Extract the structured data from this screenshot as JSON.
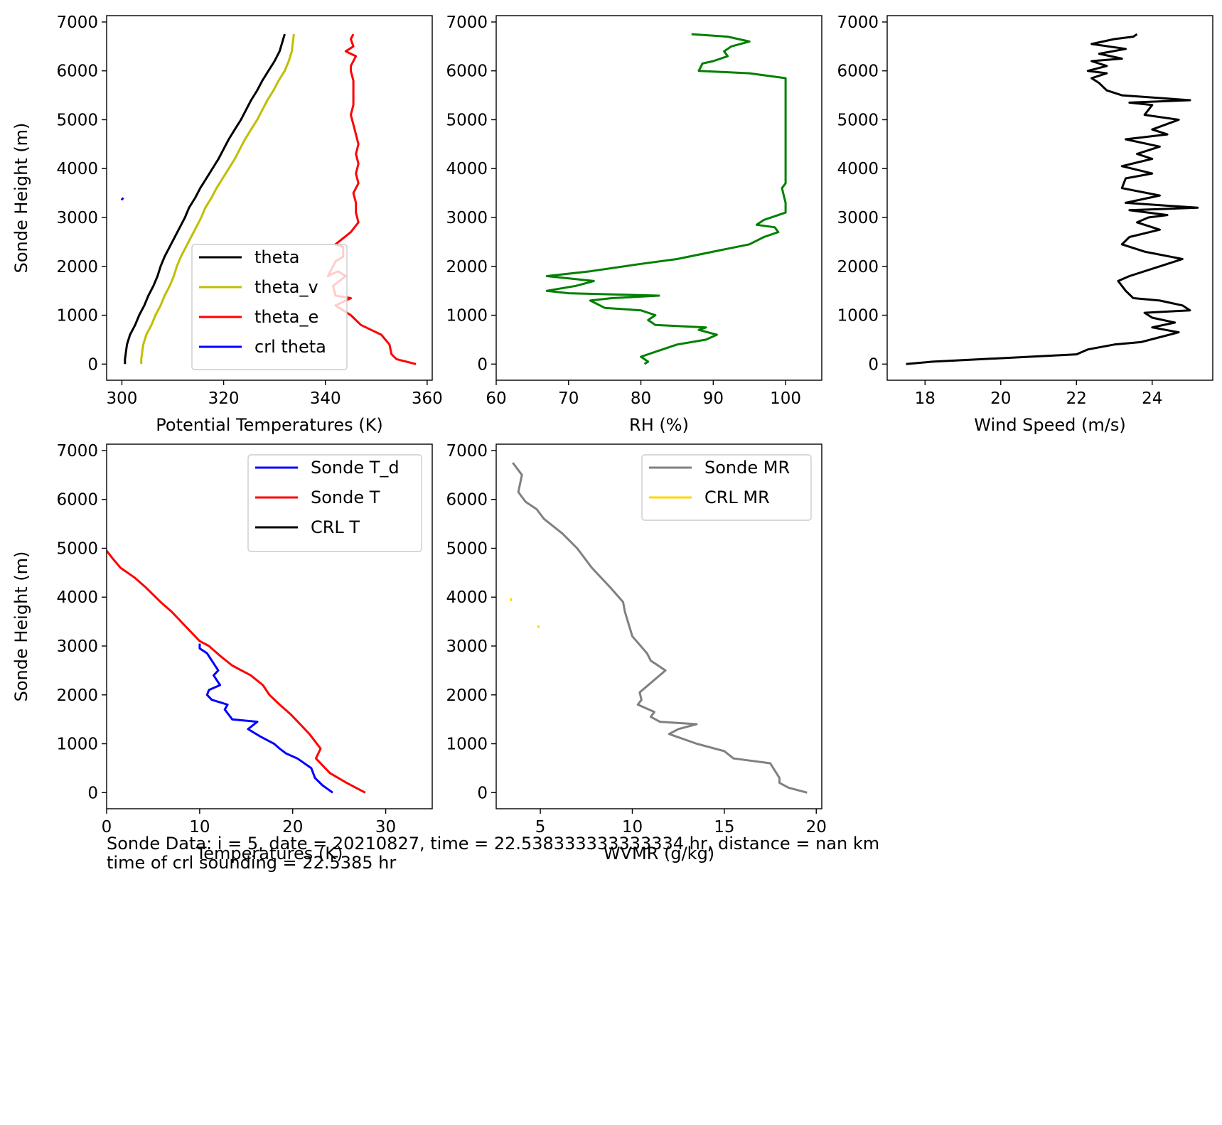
{
  "caption": {
    "line1": "Sonde Data: i = 5, date = 20210827, time = 22.538333333333334 hr, distance = nan km",
    "line2": "time of crl sounding = 22.5385 hr"
  },
  "chart_data": [
    {
      "id": "theta",
      "type": "line",
      "xlabel": "Potential Temperatures (K)",
      "ylabel": "Sonde Height (m)",
      "xlim": [
        297,
        361
      ],
      "ylim": [
        -330,
        7130
      ],
      "xticks": [
        300,
        320,
        340,
        360
      ],
      "yticks": [
        0,
        1000,
        2000,
        3000,
        4000,
        5000,
        6000,
        7000
      ],
      "legend": "lower-right",
      "series": [
        {
          "name": "theta",
          "color": "#000000",
          "x": [
            300.6,
            300.6,
            300.8,
            301.0,
            301.6,
            302.6,
            303.4,
            304.4,
            305.2,
            306.2,
            307.0,
            307.6,
            308.4,
            309.4,
            310.4,
            311.4,
            312.4,
            313.2,
            314.4,
            315.4,
            316.6,
            317.8,
            319.0,
            320.0,
            321.0,
            322.2,
            323.4,
            324.4,
            325.4,
            326.6,
            327.6,
            328.8,
            330.0,
            331.0,
            332.0
          ],
          "y": [
            0,
            100,
            250,
            400,
            600,
            800,
            1000,
            1200,
            1400,
            1600,
            1800,
            2000,
            2200,
            2400,
            2600,
            2800,
            3000,
            3200,
            3400,
            3600,
            3800,
            4000,
            4200,
            4400,
            4600,
            4800,
            5000,
            5200,
            5400,
            5600,
            5800,
            6000,
            6200,
            6400,
            6750
          ]
        },
        {
          "name": "theta_v",
          "color": "#bfbf00",
          "x": [
            303.8,
            303.8,
            304.0,
            304.2,
            304.8,
            305.8,
            306.6,
            307.6,
            308.4,
            309.4,
            310.2,
            310.8,
            311.6,
            312.6,
            313.6,
            314.6,
            315.6,
            316.4,
            317.6,
            318.6,
            319.8,
            321.0,
            322.2,
            323.2,
            324.2,
            325.4,
            326.6,
            327.6,
            328.6,
            329.8,
            330.8,
            332.0,
            332.8,
            333.4,
            333.8
          ],
          "y": [
            0,
            100,
            250,
            400,
            600,
            800,
            1000,
            1200,
            1400,
            1600,
            1800,
            2000,
            2200,
            2400,
            2600,
            2800,
            3000,
            3200,
            3400,
            3600,
            3800,
            4000,
            4200,
            4400,
            4600,
            4800,
            5000,
            5200,
            5400,
            5600,
            5800,
            6000,
            6200,
            6400,
            6750
          ]
        },
        {
          "name": "theta_e",
          "color": "#ff0000",
          "x": [
            357.8,
            354.0,
            353.0,
            352.6,
            351.0,
            349.0,
            347.0,
            345.0,
            343.5,
            342.0,
            345.0,
            342.0,
            341.5,
            344.0,
            342.5,
            340.5,
            342.0,
            343.5,
            343.5,
            342.0,
            345.0,
            346.5,
            346.0,
            346.0,
            345.5,
            346.5,
            346.0,
            346.5,
            346.0,
            346.5,
            346.0,
            345.5,
            345.0,
            345.5,
            345.5,
            345.5,
            345.0,
            345.0,
            346.0,
            344.0,
            345.5,
            345.0,
            345.5
          ],
          "y": [
            0,
            100,
            200,
            400,
            600,
            700,
            800,
            1000,
            1100,
            1200,
            1350,
            1400,
            1600,
            1800,
            1900,
            1800,
            2100,
            2200,
            2400,
            2450,
            2700,
            2900,
            3100,
            3300,
            3500,
            3700,
            3900,
            4100,
            4300,
            4500,
            4700,
            4900,
            5100,
            5300,
            5600,
            5800,
            6000,
            6100,
            6300,
            6400,
            6500,
            6650,
            6750
          ]
        },
        {
          "name": "crl theta",
          "color": "#0000ff",
          "x": [
            299.9,
            300.3
          ],
          "y": [
            3360,
            3400
          ]
        }
      ]
    },
    {
      "id": "rh",
      "type": "line",
      "xlabel": "RH (%)",
      "ylabel": "",
      "xlim": [
        60,
        105
      ],
      "ylim": [
        -330,
        7130
      ],
      "xticks": [
        60,
        70,
        80,
        90,
        100
      ],
      "yticks": [
        0,
        1000,
        2000,
        3000,
        4000,
        5000,
        6000,
        7000
      ],
      "series": [
        {
          "name": "",
          "color": "#008000",
          "x": [
            80.5,
            81.0,
            80.0,
            82.0,
            85.0,
            89.0,
            90.5,
            88.0,
            89.0,
            82.0,
            81.0,
            82.0,
            80.0,
            75.0,
            73.0,
            76.0,
            82.5,
            70.0,
            67.0,
            71.0,
            73.5,
            67.0,
            73.0,
            80.0,
            85.0,
            90.0,
            95.0,
            97.0,
            99.0,
            98.5,
            96.0,
            97.0,
            99.0,
            100.0,
            100.0,
            99.5,
            100.0,
            100.0,
            100.0,
            100.0,
            95.0,
            88.0,
            88.5,
            90.0,
            92.0,
            91.5,
            92.5,
            95.0,
            92.0,
            87.0
          ],
          "y": [
            0,
            50,
            150,
            250,
            400,
            500,
            600,
            700,
            750,
            800,
            900,
            1000,
            1100,
            1150,
            1300,
            1350,
            1400,
            1450,
            1500,
            1600,
            1700,
            1800,
            1900,
            2050,
            2150,
            2300,
            2450,
            2600,
            2700,
            2800,
            2850,
            2950,
            3050,
            3100,
            3300,
            3600,
            3700,
            3800,
            5000,
            5850,
            5950,
            6000,
            6150,
            6200,
            6300,
            6400,
            6500,
            6600,
            6700,
            6750
          ]
        }
      ]
    },
    {
      "id": "wind",
      "type": "line",
      "xlabel": "Wind Speed (m/s)",
      "ylabel": "",
      "xlim": [
        17.0,
        25.6
      ],
      "ylim": [
        -330,
        7130
      ],
      "xticks": [
        18,
        20,
        22,
        24
      ],
      "yticks": [
        0,
        1000,
        2000,
        3000,
        4000,
        5000,
        6000,
        7000
      ],
      "series": [
        {
          "name": "",
          "color": "#000000",
          "x": [
            17.5,
            18.2,
            19.5,
            22.0,
            22.3,
            23.0,
            23.7,
            24.2,
            24.7,
            24.0,
            24.6,
            24.0,
            23.8,
            25.0,
            24.8,
            24.2,
            23.5,
            23.3,
            23.1,
            23.4,
            24.8,
            23.8,
            23.2,
            23.4,
            24.2,
            23.6,
            23.9,
            24.4,
            23.4,
            25.2,
            23.3,
            24.2,
            23.2,
            23.3,
            24.0,
            23.2,
            24.0,
            23.6,
            24.2,
            23.3,
            24.4,
            24.0,
            24.7,
            23.8,
            24.0,
            23.4,
            25.0,
            23.2,
            22.8,
            22.6,
            22.4,
            22.8,
            22.3,
            22.8,
            22.4,
            23.2,
            22.6,
            23.3,
            22.4,
            23.0,
            23.5,
            23.6
          ],
          "y": [
            0,
            50,
            100,
            200,
            300,
            400,
            450,
            550,
            650,
            750,
            850,
            950,
            1050,
            1100,
            1200,
            1300,
            1350,
            1500,
            1700,
            1800,
            2150,
            2300,
            2450,
            2600,
            2750,
            2900,
            3000,
            3050,
            3150,
            3200,
            3300,
            3450,
            3600,
            3800,
            3900,
            4050,
            4200,
            4300,
            4450,
            4600,
            4700,
            4800,
            5000,
            5100,
            5300,
            5350,
            5400,
            5500,
            5600,
            5750,
            5850,
            5950,
            6000,
            6100,
            6200,
            6250,
            6350,
            6450,
            6550,
            6650,
            6700,
            6750
          ]
        }
      ]
    },
    {
      "id": "temperature",
      "type": "line",
      "xlabel": "Temperatures (K)",
      "ylabel": "Sonde Height (m)",
      "xlim": [
        0,
        35
      ],
      "ylim": [
        -330,
        7130
      ],
      "xticks": [
        0,
        10,
        20,
        30
      ],
      "yticks": [
        0,
        1000,
        2000,
        3000,
        4000,
        5000,
        6000,
        7000
      ],
      "legend": "upper-right",
      "series": [
        {
          "name": "Sonde T_d",
          "color": "#0000ff",
          "x": [
            24.3,
            23.2,
            22.4,
            22.0,
            20.5,
            19.3,
            18.6,
            18.0,
            16.5,
            15.2,
            16.2,
            13.5,
            12.7,
            13.0,
            11.3,
            10.8,
            11.0,
            12.2,
            11.5,
            12.0,
            10.8,
            10.0,
            10.0
          ],
          "y": [
            0,
            150,
            300,
            500,
            700,
            800,
            900,
            1000,
            1150,
            1300,
            1450,
            1500,
            1700,
            1800,
            1900,
            2000,
            2100,
            2200,
            2400,
            2500,
            2850,
            2950,
            3050
          ],
          "mask_above": 3050
        },
        {
          "name": "Sonde T",
          "color": "#ff0000",
          "x": [
            27.8,
            25.8,
            24.0,
            22.5,
            23.0,
            21.8,
            20.8,
            19.8,
            18.6,
            17.5,
            16.8,
            15.5,
            13.5,
            12.2,
            11.0,
            10.0,
            8.5,
            7.0,
            5.8,
            4.2,
            3.0,
            1.5,
            0.6,
            0.0
          ],
          "y": [
            0,
            200,
            400,
            700,
            900,
            1200,
            1400,
            1600,
            1800,
            2000,
            2200,
            2400,
            2600,
            2800,
            3000,
            3100,
            3400,
            3700,
            3900,
            4200,
            4400,
            4600,
            4800,
            4950
          ]
        },
        {
          "name": "CRL T",
          "color": "#000000",
          "x": [],
          "y": []
        }
      ]
    },
    {
      "id": "wvmr",
      "type": "line",
      "xlabel": "WVMR (g/kg)",
      "ylabel": "",
      "xlim": [
        2.6,
        20.3
      ],
      "ylim": [
        -330,
        7130
      ],
      "xticks": [
        5,
        10,
        15,
        20
      ],
      "yticks": [
        0,
        1000,
        2000,
        3000,
        4000,
        5000,
        6000,
        7000
      ],
      "legend": "upper-right",
      "series": [
        {
          "name": "Sonde MR",
          "color": "#808080",
          "x": [
            19.5,
            18.5,
            18.0,
            18.0,
            17.5,
            15.5,
            15.0,
            13.5,
            12.0,
            12.5,
            13.5,
            11.5,
            11.0,
            11.2,
            10.3,
            10.5,
            10.4,
            11.8,
            11.0,
            10.8,
            10.0,
            9.6,
            9.5,
            8.8,
            7.8,
            7.0,
            6.2,
            5.2,
            4.8,
            4.2,
            3.8,
            4.0,
            3.7,
            3.5
          ],
          "y": [
            0,
            100,
            200,
            300,
            600,
            700,
            850,
            1000,
            1200,
            1300,
            1400,
            1450,
            1550,
            1650,
            1800,
            1900,
            2050,
            2500,
            2700,
            2850,
            3200,
            3700,
            3900,
            4200,
            4600,
            5000,
            5300,
            5600,
            5800,
            5950,
            6150,
            6500,
            6650,
            6750
          ]
        },
        {
          "name": "CRL MR",
          "color": "#ffd700",
          "x": [
            3.4,
            3.4,
            4.9,
            4.9
          ],
          "y": [
            3920,
            3980,
            3370,
            3420
          ],
          "segments": [
            [
              0,
              1
            ],
            [
              2,
              3
            ]
          ]
        }
      ]
    }
  ]
}
